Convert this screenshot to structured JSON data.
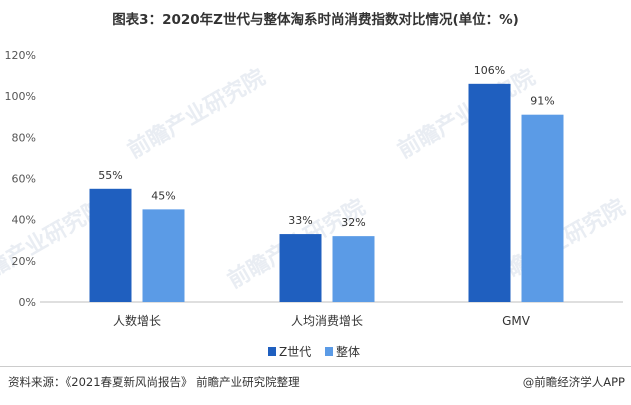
{
  "chart_data": {
    "type": "bar",
    "title": "图表3：2020年Z世代与整体淘系时尚消费指数对比情况(单位：%)",
    "categories": [
      "人数增长",
      "人均消费增长",
      "GMV"
    ],
    "series": [
      {
        "name": "Z世代",
        "values": [
          55,
          33,
          106
        ],
        "labels": [
          "55%",
          "33%",
          "106%"
        ]
      },
      {
        "name": "整体",
        "values": [
          45,
          32,
          91
        ],
        "labels": [
          "45%",
          "32%",
          "91%"
        ]
      }
    ],
    "ylim": [
      0,
      120
    ],
    "yticks": [
      0,
      20,
      40,
      60,
      80,
      100,
      120
    ],
    "ytick_labels": [
      "0%",
      "20%",
      "40%",
      "60%",
      "80%",
      "100%",
      "120%"
    ],
    "grid": false,
    "legend_position": "bottom"
  },
  "colors": {
    "z_series": "#1f5fbf",
    "overall_series": "#5b9be6"
  },
  "footer": {
    "source": "资料来源：《2021春夏新风尚报告》 前瞻产业研究院整理",
    "credit": "@前瞻经济学人APP"
  },
  "watermark": {
    "text": "前瞻产业研究院"
  }
}
